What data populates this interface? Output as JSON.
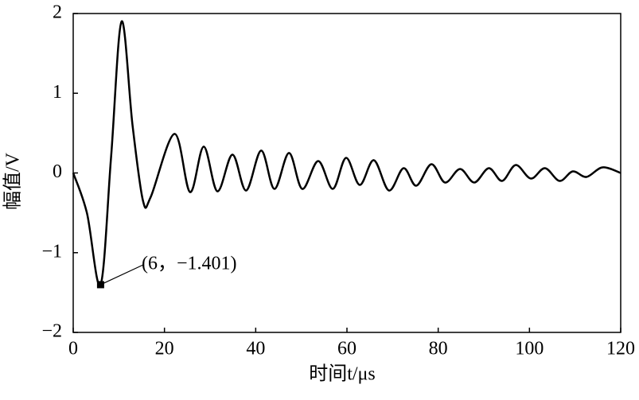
{
  "chart_data": {
    "type": "line",
    "xlabel": "时间t/μs",
    "ylabel": "幅值/V",
    "x": [
      0,
      3,
      6,
      8.3,
      10.6,
      13,
      15.3,
      17,
      22.2,
      25.6,
      28.6,
      31.6,
      34.9,
      37.9,
      41.2,
      44.1,
      47.3,
      50.2,
      53.7,
      56.9,
      59.8,
      62.8,
      65.9,
      69.2,
      72.4,
      75.2,
      78.5,
      81.5,
      84.8,
      87.9,
      91.1,
      94.0,
      97.0,
      100.3,
      103.4,
      106.6,
      109.5,
      112.5,
      116.0,
      120
    ],
    "series": [
      {
        "color": "#000000",
        "values": [
          0,
          -0.5,
          -1.401,
          0.2,
          1.9,
          0.6,
          -0.35,
          -0.3,
          0.49,
          -0.24,
          0.33,
          -0.23,
          0.23,
          -0.22,
          0.28,
          -0.2,
          0.25,
          -0.2,
          0.15,
          -0.2,
          0.19,
          -0.15,
          0.16,
          -0.22,
          0.06,
          -0.16,
          0.11,
          -0.12,
          0.05,
          -0.12,
          0.06,
          -0.1,
          0.1,
          -0.07,
          0.06,
          -0.1,
          0.02,
          -0.05,
          0.07,
          0.0
        ]
      }
    ],
    "xlim": [
      0,
      120
    ],
    "xticks": [
      0,
      20,
      40,
      60,
      80,
      100,
      120
    ],
    "ylim": [
      -2,
      2
    ],
    "yticks": [
      {
        "value": -2,
        "label": "−2"
      },
      {
        "value": -1,
        "label": "−1"
      },
      0,
      1,
      2
    ],
    "annotation": {
      "text": "(6，−1.401)",
      "x": 6,
      "y": -1.401
    }
  }
}
